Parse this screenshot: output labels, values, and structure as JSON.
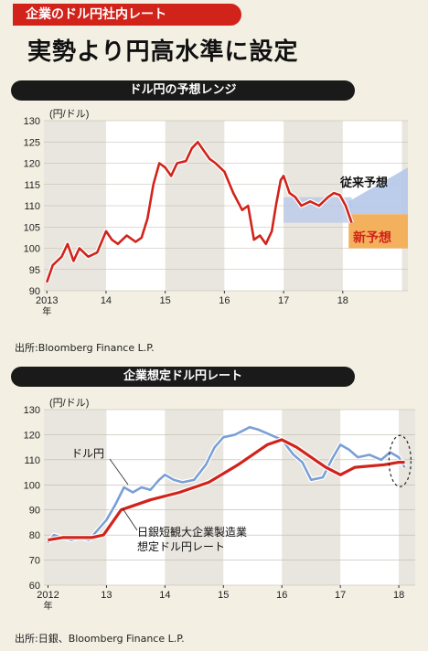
{
  "header": {
    "tag": "企業のドル円社内レート",
    "headline": "実勢より円高水準に設定"
  },
  "colors": {
    "accent": "#d2231a",
    "blue": "#7a9fd6",
    "band_blue": "#b5c8ea",
    "band_orange": "#f3b15e",
    "white_band": "#ffffff"
  },
  "chart_data": [
    {
      "type": "line",
      "title": "ドル円の予想レンジ",
      "ylabel": "(円/ドル)",
      "ylim": [
        90,
        130
      ],
      "yticks": [
        90,
        95,
        100,
        105,
        110,
        115,
        120,
        125,
        130
      ],
      "xlabels": [
        "2013\n年",
        "14",
        "15",
        "16",
        "17",
        "18"
      ],
      "xlabel_years": [
        2013,
        2014,
        2015,
        2016,
        2017,
        2018
      ],
      "series": [
        {
          "name": "",
          "color": "#d2231a",
          "points": [
            [
              2013.0,
              92
            ],
            [
              2013.1,
              96
            ],
            [
              2013.25,
              98
            ],
            [
              2013.35,
              101
            ],
            [
              2013.45,
              97
            ],
            [
              2013.55,
              100
            ],
            [
              2013.7,
              98
            ],
            [
              2013.85,
              99
            ],
            [
              2014.0,
              104
            ],
            [
              2014.1,
              102
            ],
            [
              2014.2,
              101
            ],
            [
              2014.35,
              103
            ],
            [
              2014.5,
              101.5
            ],
            [
              2014.6,
              102.5
            ],
            [
              2014.7,
              107
            ],
            [
              2014.8,
              115
            ],
            [
              2014.9,
              120
            ],
            [
              2015.0,
              119
            ],
            [
              2015.1,
              117
            ],
            [
              2015.2,
              120
            ],
            [
              2015.35,
              120.5
            ],
            [
              2015.45,
              123.5
            ],
            [
              2015.55,
              125
            ],
            [
              2015.65,
              123
            ],
            [
              2015.75,
              121
            ],
            [
              2015.85,
              120
            ],
            [
              2016.0,
              118
            ],
            [
              2016.15,
              113
            ],
            [
              2016.3,
              109
            ],
            [
              2016.4,
              110
            ],
            [
              2016.5,
              102
            ],
            [
              2016.6,
              103
            ],
            [
              2016.7,
              101
            ],
            [
              2016.8,
              104
            ],
            [
              2016.87,
              110
            ],
            [
              2016.95,
              116
            ],
            [
              2017.0,
              117
            ],
            [
              2017.1,
              113
            ],
            [
              2017.2,
              112
            ],
            [
              2017.3,
              110
            ],
            [
              2017.45,
              111
            ],
            [
              2017.6,
              110
            ],
            [
              2017.75,
              112
            ],
            [
              2017.85,
              113
            ],
            [
              2017.95,
              112.5
            ],
            [
              2018.05,
              110
            ],
            [
              2018.15,
              106
            ]
          ]
        }
      ],
      "bands": [
        {
          "label": "従来予想",
          "start_year": 2018.1,
          "range_start": [
            108,
            111
          ],
          "range_end": [
            108,
            119
          ]
        },
        {
          "label": "新予想",
          "start_year": 2018.1,
          "range_start": [
            100,
            108
          ],
          "range_end": [
            100,
            108
          ]
        }
      ],
      "band_history": {
        "year_start": 2017.0,
        "year_end": 2018.15,
        "range": [
          106,
          112
        ]
      },
      "source": "出所:Bloomberg Finance L.P."
    },
    {
      "type": "line",
      "title": "企業想定ドル円レート",
      "ylabel": "(円/ドル)",
      "ylim": [
        60,
        130
      ],
      "yticks": [
        60,
        70,
        80,
        90,
        100,
        110,
        120,
        130
      ],
      "xlabels": [
        "2012\n年",
        "13",
        "14",
        "15",
        "16",
        "17",
        "18"
      ],
      "xlabel_years": [
        2012,
        2013,
        2014,
        2015,
        2016,
        2017,
        2018
      ],
      "series": [
        {
          "name": "ドル円",
          "color": "#7a9fd6",
          "points": [
            [
              2012.0,
              77
            ],
            [
              2012.1,
              80
            ],
            [
              2012.25,
              79
            ],
            [
              2012.4,
              78
            ],
            [
              2012.55,
              79
            ],
            [
              2012.7,
              78
            ],
            [
              2012.85,
              82
            ],
            [
              2013.0,
              86
            ],
            [
              2013.15,
              92
            ],
            [
              2013.3,
              99
            ],
            [
              2013.45,
              97
            ],
            [
              2013.6,
              99
            ],
            [
              2013.75,
              98
            ],
            [
              2013.9,
              102
            ],
            [
              2014.0,
              104
            ],
            [
              2014.15,
              102
            ],
            [
              2014.3,
              101
            ],
            [
              2014.5,
              102
            ],
            [
              2014.7,
              108
            ],
            [
              2014.85,
              115
            ],
            [
              2015.0,
              119
            ],
            [
              2015.2,
              120
            ],
            [
              2015.45,
              123
            ],
            [
              2015.6,
              122
            ],
            [
              2015.8,
              120
            ],
            [
              2016.0,
              118
            ],
            [
              2016.2,
              112
            ],
            [
              2016.35,
              109
            ],
            [
              2016.5,
              102
            ],
            [
              2016.7,
              103
            ],
            [
              2016.85,
              110
            ],
            [
              2017.0,
              116
            ],
            [
              2017.15,
              114
            ],
            [
              2017.3,
              111
            ],
            [
              2017.5,
              112
            ],
            [
              2017.7,
              110
            ],
            [
              2017.85,
              113
            ],
            [
              2018.0,
              111
            ],
            [
              2018.1,
              107
            ]
          ]
        },
        {
          "name": "日銀短観大企業製造業\n想定ドル円レート",
          "color": "#d2231a",
          "points": [
            [
              2012.0,
              78
            ],
            [
              2012.25,
              79
            ],
            [
              2012.75,
              79
            ],
            [
              2012.95,
              80
            ],
            [
              2013.25,
              90
            ],
            [
              2013.75,
              94
            ],
            [
              2014.25,
              97
            ],
            [
              2014.75,
              101
            ],
            [
              2015.25,
              108
            ],
            [
              2015.75,
              116
            ],
            [
              2016.0,
              118
            ],
            [
              2016.25,
              115
            ],
            [
              2016.75,
              107
            ],
            [
              2017.0,
              104
            ],
            [
              2017.25,
              107
            ],
            [
              2017.75,
              108
            ],
            [
              2018.0,
              109
            ],
            [
              2018.1,
              109
            ]
          ]
        }
      ],
      "source": "出所:日銀、Bloomberg Finance L.P."
    }
  ]
}
